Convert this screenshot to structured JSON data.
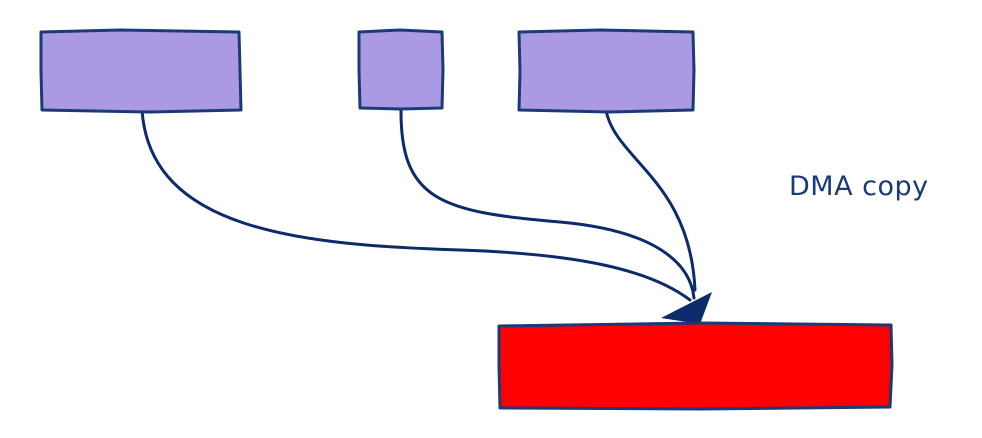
{
  "diagram": {
    "label": "DMA copy",
    "colors": {
      "source_fill": "#ab9ae3",
      "dest_fill": "#ff0000",
      "stroke": "#1a3a78",
      "arrow": "#0d2a6b",
      "label": "#1a3a78"
    }
  }
}
